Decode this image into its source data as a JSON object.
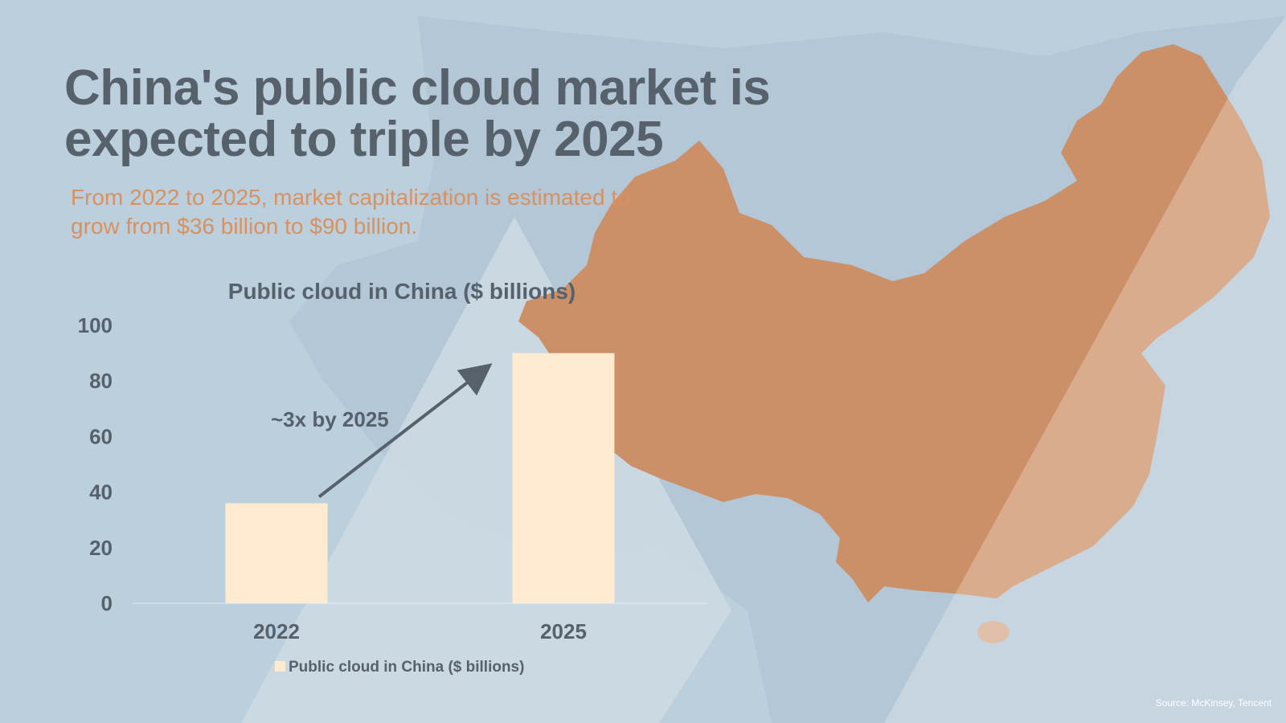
{
  "title": "China's public cloud market is expected to triple by 2025",
  "subtitle": "From 2022 to 2025, market capitalization is estimated to grow from $36 billion to $90 billion.",
  "source": "Source: McKinsey, Tencent",
  "colors": {
    "background": "#bccfdd",
    "title": "#56616c",
    "subtitle": "#d8915f",
    "map": "#cc9068",
    "bar": "#ffebcf"
  },
  "chart_data": {
    "type": "bar",
    "title": "Public cloud in China ($ billions)",
    "categories": [
      "2022",
      "2025"
    ],
    "series": [
      {
        "name": "Public cloud in China ($ billions)",
        "values": [
          36,
          90
        ]
      }
    ],
    "ylim": [
      0,
      100
    ],
    "yticks": [
      0,
      20,
      40,
      60,
      80,
      100
    ],
    "xlabel": "",
    "ylabel": "",
    "grid": false,
    "legend": "bottom",
    "annotation": "~3x by 2025"
  }
}
